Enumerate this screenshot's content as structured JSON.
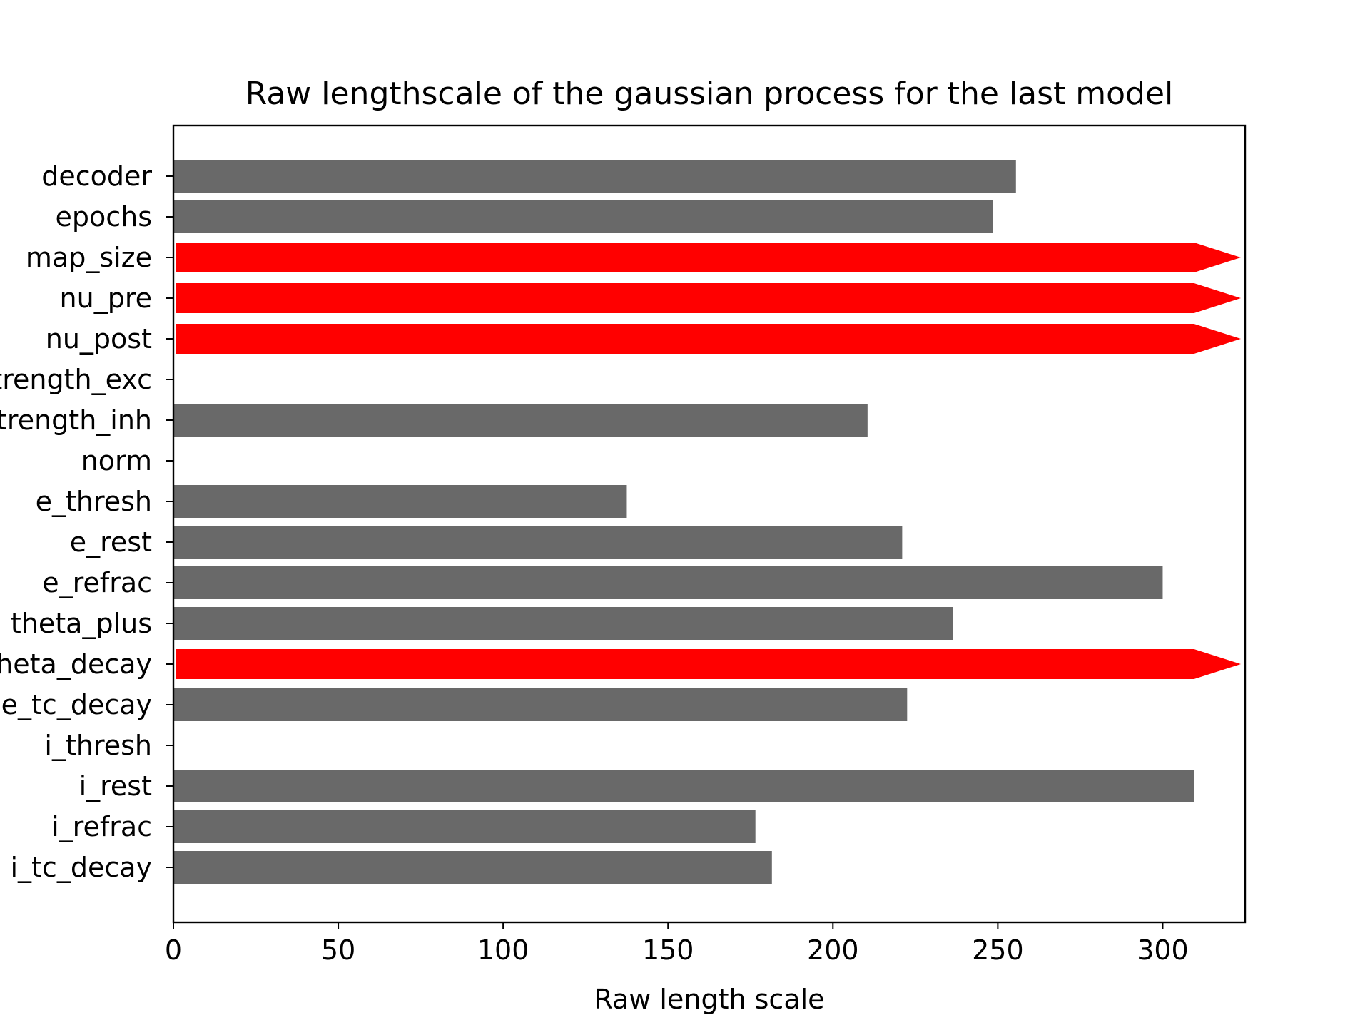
{
  "chart_data": {
    "type": "bar",
    "orientation": "horizontal",
    "title": "Raw lengthscale of the gaussian process for the last model",
    "xlabel": "Raw length scale",
    "ylabel": "",
    "xlim": [
      0,
      325
    ],
    "xticks": [
      0,
      50,
      100,
      150,
      200,
      250,
      300
    ],
    "grid": false,
    "categories": [
      "decoder",
      "epochs",
      "map_size",
      "nu_pre",
      "nu_post",
      "strength_exc",
      "strength_inh",
      "norm",
      "e_thresh",
      "e_rest",
      "e_refrac",
      "theta_plus",
      "theta_decay",
      "e_tc_decay",
      "i_thresh",
      "i_rest",
      "i_refrac",
      "i_tc_decay"
    ],
    "values": [
      255.5,
      248.5,
      null,
      null,
      null,
      0,
      210.5,
      0,
      137.5,
      221,
      300,
      236.5,
      null,
      222.5,
      0,
      309.5,
      176.5,
      181.5
    ],
    "clipped": [
      false,
      false,
      true,
      true,
      true,
      false,
      false,
      false,
      false,
      false,
      false,
      false,
      true,
      false,
      false,
      false,
      false,
      false
    ],
    "bar_color": "#696969",
    "clipped_color": "#ff0000"
  }
}
